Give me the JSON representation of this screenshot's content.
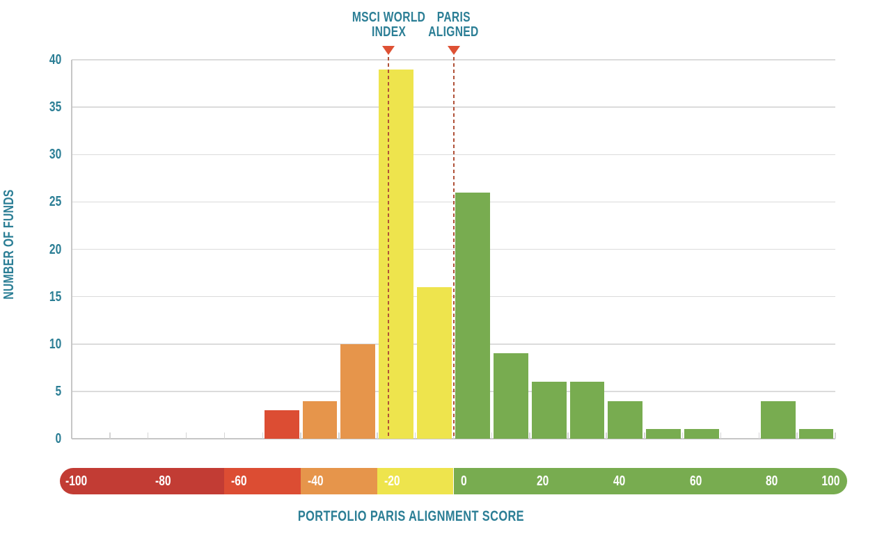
{
  "chart_data": {
    "type": "bar",
    "subtype": "histogram",
    "title": "",
    "xlabel": "PORTFOLIO PARIS ALIGNMENT SCORE",
    "ylabel": "NUMBER OF FUNDS",
    "xlim": [
      -100,
      100
    ],
    "ylim": [
      0,
      40
    ],
    "grid": "horizontal",
    "legend": "none",
    "y_ticks": [
      0,
      5,
      10,
      15,
      20,
      25,
      30,
      35,
      40
    ],
    "x_scale_labels": [
      -100,
      -80,
      -60,
      -40,
      -20,
      0,
      20,
      40,
      60,
      80,
      100
    ],
    "x_minor_tick_step": 10,
    "bin_width": 10,
    "bins": [
      {
        "from": -50,
        "to": -40,
        "count": 3,
        "color": "red"
      },
      {
        "from": -40,
        "to": -30,
        "count": 4,
        "color": "orange"
      },
      {
        "from": -30,
        "to": -20,
        "count": 10,
        "color": "orange"
      },
      {
        "from": -20,
        "to": -10,
        "count": 39,
        "color": "yellow"
      },
      {
        "from": -10,
        "to": 0,
        "count": 16,
        "color": "yellow"
      },
      {
        "from": 0,
        "to": 10,
        "count": 26,
        "color": "green"
      },
      {
        "from": 10,
        "to": 20,
        "count": 9,
        "color": "green"
      },
      {
        "from": 20,
        "to": 30,
        "count": 6,
        "color": "green"
      },
      {
        "from": 30,
        "to": 40,
        "count": 6,
        "color": "green"
      },
      {
        "from": 40,
        "to": 50,
        "count": 4,
        "color": "green"
      },
      {
        "from": 50,
        "to": 60,
        "count": 1,
        "color": "green"
      },
      {
        "from": 60,
        "to": 70,
        "count": 1,
        "color": "green"
      },
      {
        "from": 70,
        "to": 80,
        "count": 0,
        "color": "green"
      },
      {
        "from": 80,
        "to": 90,
        "count": 4,
        "color": "green"
      },
      {
        "from": 90,
        "to": 100,
        "count": 1,
        "color": "green"
      }
    ],
    "annotations": [
      {
        "id": "msci-world-index",
        "line1": "MSCI WORLD",
        "line2": "INDEX",
        "value": -17
      },
      {
        "id": "paris-aligned",
        "line1": "PARIS",
        "line2": "ALIGNED",
        "value": 0
      }
    ],
    "colorbar": {
      "labels": [
        -100,
        -80,
        -60,
        -40,
        -20,
        0,
        20,
        40,
        60,
        80,
        100
      ],
      "segments": [
        {
          "from": -100,
          "to": -60,
          "color": "darkred"
        },
        {
          "from": -60,
          "to": -40,
          "color": "red"
        },
        {
          "from": -40,
          "to": -20,
          "color": "orange"
        },
        {
          "from": -20,
          "to": 0,
          "color": "yellow"
        },
        {
          "from": 0,
          "to": 100,
          "color": "green"
        }
      ]
    },
    "palette": {
      "darkred": "#C23C34",
      "red": "#DC4D33",
      "orange": "#E6954B",
      "yellow": "#EEE44D",
      "green": "#78AC50"
    },
    "colors": {
      "axis_text": "#2B7E95",
      "marker": "#DE5134",
      "reference_line": "#B05138",
      "gridline": "#DBDBDB",
      "axis_line": "#C6C6C6",
      "tick": "#D4D4D4",
      "label_on_scale": "#FFFFFF"
    }
  }
}
